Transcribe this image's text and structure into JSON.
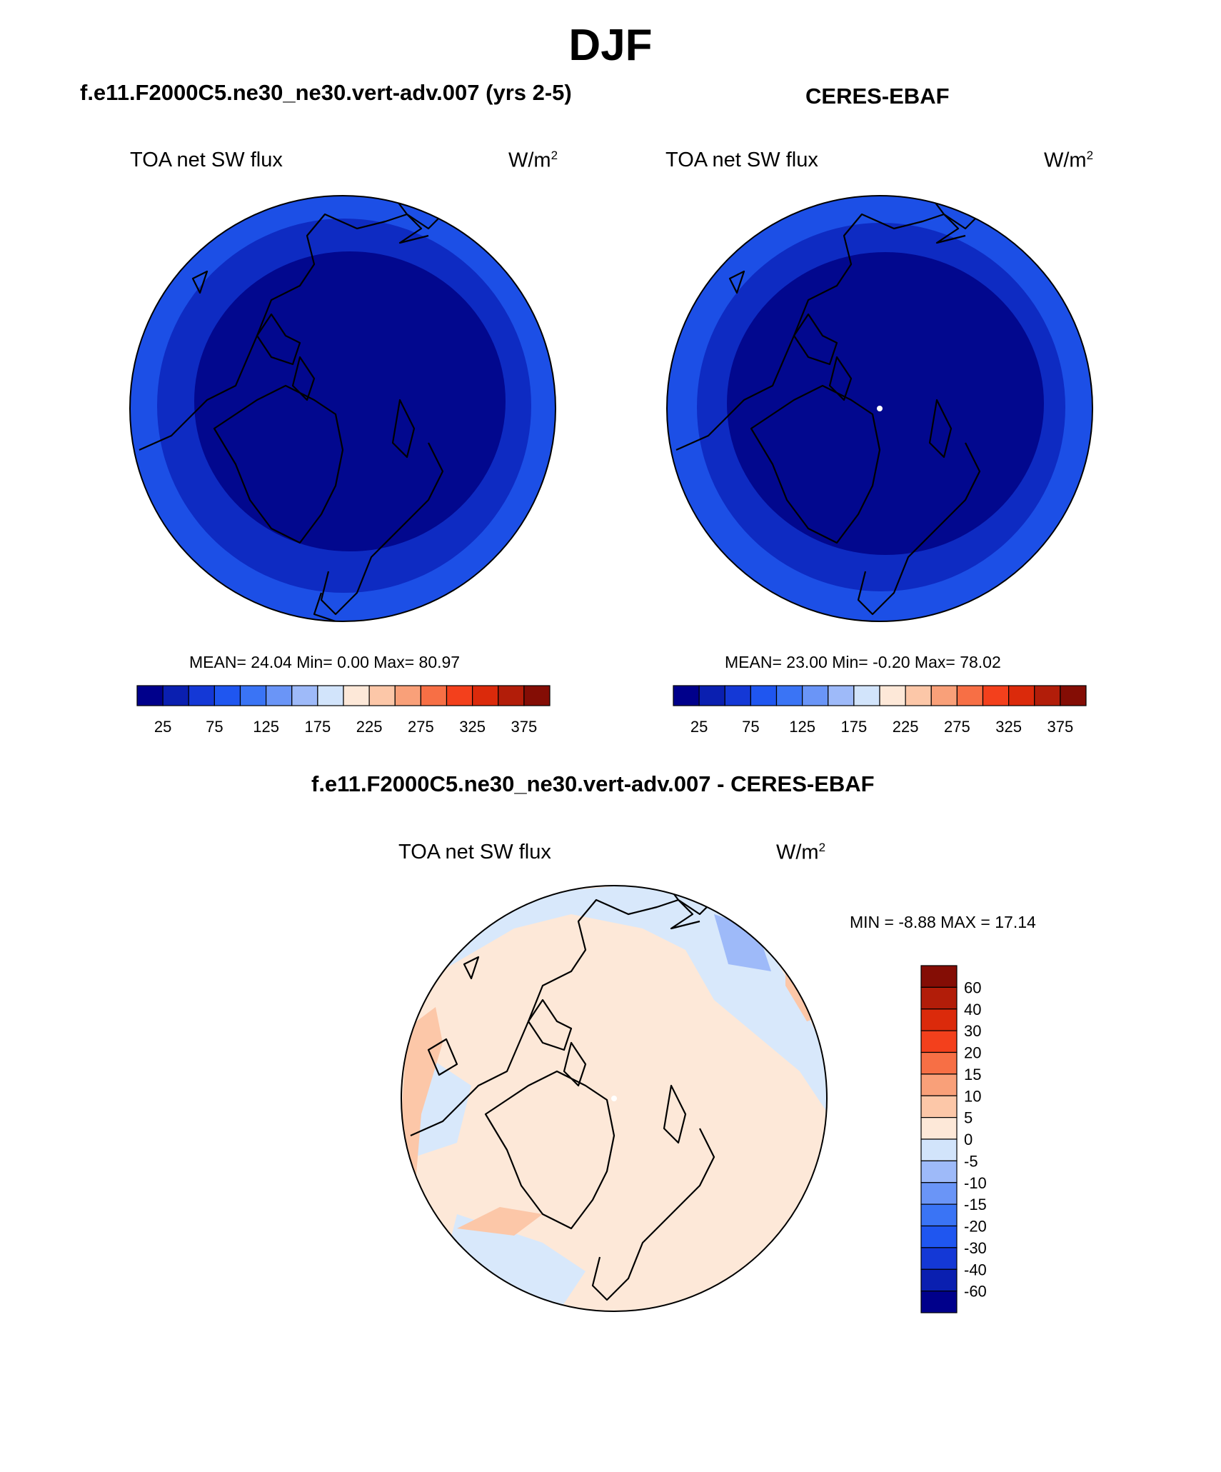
{
  "season": "DJF",
  "panels": [
    {
      "title": "f.e11.F2000C5.ne30_ne30.vert-adv.007 (yrs 2-5)",
      "variable": "TOA net SW flux",
      "units": "W/m",
      "units_exp": "2",
      "stats": "MEAN=  24.04  Min=   0.00  Max=  80.97"
    },
    {
      "title": "CERES-EBAF",
      "variable": "TOA net SW flux",
      "units": "W/m",
      "units_exp": "2",
      "stats": "MEAN=  23.00  Min=  -0.20  Max=  78.02"
    },
    {
      "title": "f.e11.F2000C5.ne30_ne30.vert-adv.007 - CERES-EBAF",
      "variable": "TOA net SW flux",
      "units": "W/m",
      "units_exp": "2",
      "stats": "MIN =  -8.88 MAX =  17.14"
    }
  ],
  "colorbar_main": {
    "colors": [
      "#00008b",
      "#0a1fb0",
      "#1438d6",
      "#1f56f0",
      "#3a74f5",
      "#6a95f7",
      "#9ebaf9",
      "#d2e4fb",
      "#fde8d8",
      "#fcc7a8",
      "#f9a079",
      "#f76f45",
      "#f3401c",
      "#db2a0b",
      "#b21d09",
      "#840d05"
    ],
    "ticks": [
      "25",
      "75",
      "125",
      "175",
      "225",
      "275",
      "325",
      "375"
    ]
  },
  "colorbar_diff": {
    "colors": [
      "#00008b",
      "#0a1fb0",
      "#1438d6",
      "#1f56f0",
      "#3a74f5",
      "#6a95f7",
      "#9ebaf9",
      "#d2e4fb",
      "#fde8d8",
      "#fcc7a8",
      "#f9a079",
      "#f76f45",
      "#f3401c",
      "#db2a0b",
      "#b21d09",
      "#840d05"
    ],
    "ticks": [
      "-60",
      "-40",
      "-30",
      "-20",
      "-15",
      "-10",
      "-5",
      "0",
      "5",
      "10",
      "15",
      "20",
      "30",
      "40",
      "60"
    ]
  },
  "map_colors": {
    "outer": "#1c4fe6",
    "mid": "#0e2bc2",
    "inner": "#02088e",
    "diff_base": "#fde8d8",
    "diff_neg": "#d8e8fb",
    "diff_neg2": "#9ebaf9",
    "diff_pos": "#fcc7a8",
    "diff_pos2": "#f9a079"
  }
}
